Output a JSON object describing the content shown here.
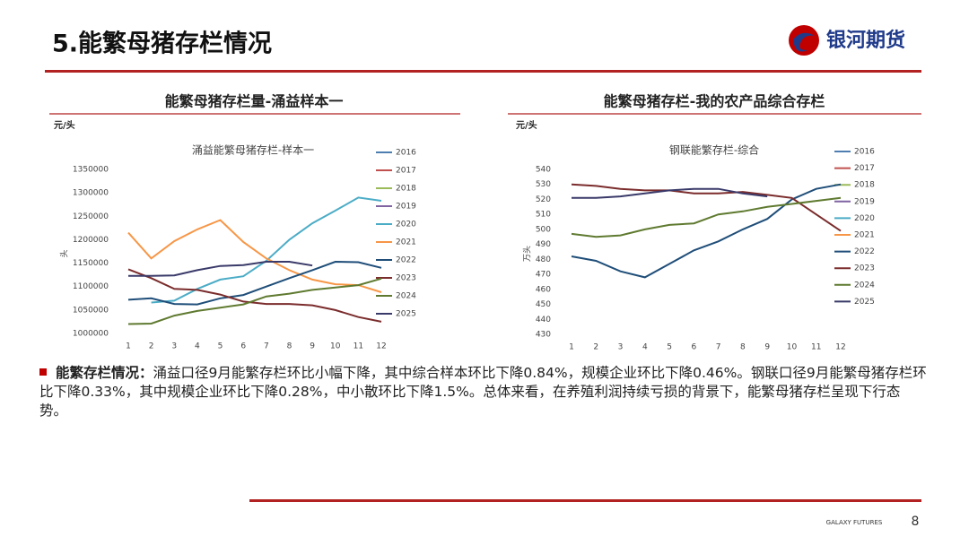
{
  "header": {
    "title": "5.能繁母猪存栏情况",
    "logo": "银河期货"
  },
  "chart_data": [
    {
      "type": "line",
      "heading": "能繁母猪存栏量-涌益样本一",
      "unit": "元/头",
      "title": "涌益能繁母猪存栏-样本一",
      "ylabel": "头",
      "categories": [
        "1",
        "2",
        "3",
        "4",
        "5",
        "6",
        "7",
        "8",
        "9",
        "10",
        "11",
        "12"
      ],
      "ylim": [
        1000000,
        1350000
      ],
      "yticks": [
        1000000,
        1050000,
        1100000,
        1150000,
        1200000,
        1250000,
        1300000,
        1350000
      ],
      "series": [
        {
          "name": "2016",
          "color": "#4e7eb0",
          "values": [
            null,
            null,
            null,
            null,
            null,
            null,
            null,
            null,
            null,
            null,
            null,
            null
          ]
        },
        {
          "name": "2017",
          "color": "#c0504d",
          "values": [
            null,
            null,
            null,
            null,
            null,
            null,
            null,
            null,
            null,
            null,
            null,
            null
          ]
        },
        {
          "name": "2018",
          "color": "#9bbb59",
          "values": [
            null,
            null,
            null,
            null,
            null,
            null,
            null,
            null,
            null,
            null,
            null,
            null
          ]
        },
        {
          "name": "2019",
          "color": "#8064a2",
          "values": [
            null,
            null,
            null,
            null,
            null,
            null,
            null,
            null,
            null,
            null,
            null,
            null
          ]
        },
        {
          "name": "2020",
          "color": "#4bacc6",
          "values": [
            null,
            1066000,
            1070000,
            1095000,
            1115000,
            1122000,
            1155000,
            1200000,
            1235000,
            1262000,
            1290000,
            1283000
          ]
        },
        {
          "name": "2021",
          "color": "#f79646",
          "values": [
            1215000,
            1160000,
            1197000,
            1222000,
            1242000,
            1195000,
            1160000,
            1135000,
            1115000,
            1105000,
            1103000,
            1088000
          ]
        },
        {
          "name": "2022",
          "color": "#1f4e79",
          "values": [
            1072000,
            1075000,
            1063000,
            1062000,
            1075000,
            1082000,
            1100000,
            1118000,
            1135000,
            1153000,
            1152000,
            1140000
          ]
        },
        {
          "name": "2023",
          "color": "#7b2c2c",
          "values": [
            1137000,
            1118000,
            1095000,
            1093000,
            1083000,
            1068000,
            1063000,
            1063000,
            1060000,
            1050000,
            1035000,
            1025000
          ]
        },
        {
          "name": "2024",
          "color": "#5f7a30",
          "values": [
            1020000,
            1021000,
            1038000,
            1048000,
            1055000,
            1062000,
            1079000,
            1085000,
            1093000,
            1098000,
            1103000,
            1117000
          ]
        },
        {
          "name": "2025",
          "color": "#3a3a6a",
          "values": [
            1123000,
            1123000,
            1124000,
            1135000,
            1144000,
            1146000,
            1153000,
            1153000,
            1145000,
            null,
            null,
            null
          ]
        }
      ]
    },
    {
      "type": "line",
      "heading": "能繁母猪存栏-我的农产品综合存栏",
      "unit": "元/头",
      "title": "钢联能繁存栏-综合",
      "ylabel": "万头",
      "categories": [
        "1",
        "2",
        "3",
        "4",
        "5",
        "6",
        "7",
        "8",
        "9",
        "10",
        "11",
        "12"
      ],
      "ylim": [
        430,
        540
      ],
      "yticks": [
        430,
        440,
        450,
        460,
        470,
        480,
        490,
        500,
        510,
        520,
        530,
        540
      ],
      "series": [
        {
          "name": "2016",
          "color": "#4e7eb0",
          "values": [
            null,
            null,
            null,
            null,
            null,
            null,
            null,
            null,
            null,
            null,
            null,
            null
          ]
        },
        {
          "name": "2017",
          "color": "#c0504d",
          "values": [
            null,
            null,
            null,
            null,
            null,
            null,
            null,
            null,
            null,
            null,
            null,
            null
          ]
        },
        {
          "name": "2018",
          "color": "#9bbb59",
          "values": [
            null,
            null,
            null,
            null,
            null,
            null,
            null,
            null,
            null,
            null,
            null,
            null
          ]
        },
        {
          "name": "2019",
          "color": "#8064a2",
          "values": [
            null,
            null,
            null,
            null,
            null,
            null,
            null,
            null,
            null,
            null,
            null,
            null
          ]
        },
        {
          "name": "2020",
          "color": "#4bacc6",
          "values": [
            null,
            null,
            null,
            null,
            null,
            null,
            null,
            null,
            null,
            null,
            null,
            null
          ]
        },
        {
          "name": "2021",
          "color": "#f79646",
          "values": [
            null,
            null,
            null,
            null,
            null,
            null,
            null,
            null,
            null,
            null,
            null,
            null
          ]
        },
        {
          "name": "2022",
          "color": "#1f4e79",
          "values": [
            482,
            479,
            472,
            468,
            477,
            486,
            492,
            500,
            507,
            520,
            527,
            530
          ]
        },
        {
          "name": "2023",
          "color": "#7b2c2c",
          "values": [
            530,
            529,
            527,
            526,
            526,
            524,
            524,
            525,
            523,
            521,
            510,
            499
          ]
        },
        {
          "name": "2024",
          "color": "#5f7a30",
          "values": [
            497,
            495,
            496,
            500,
            503,
            504,
            510,
            512,
            515,
            517,
            519,
            521
          ]
        },
        {
          "name": "2025",
          "color": "#3a3a6a",
          "values": [
            521,
            521,
            522,
            524,
            526,
            527,
            527,
            524,
            522,
            null,
            null,
            null
          ]
        }
      ]
    }
  ],
  "text": {
    "label": "能繁存栏情况：",
    "body": "涌益口径9月能繁存栏环比小幅下降，其中综合样本环比下降0.84%，规模企业环比下降0.46%。钢联口径9月能繁母猪存栏环比下降0.33%，其中规模企业环比下降0.28%，中小散环比下降1.5%。总体来看，在养殖利润持续亏损的背景下，能繁母猪存栏呈现下行态势。"
  },
  "footer": {
    "brand": "GALAXY FUTURES",
    "page": "8"
  }
}
